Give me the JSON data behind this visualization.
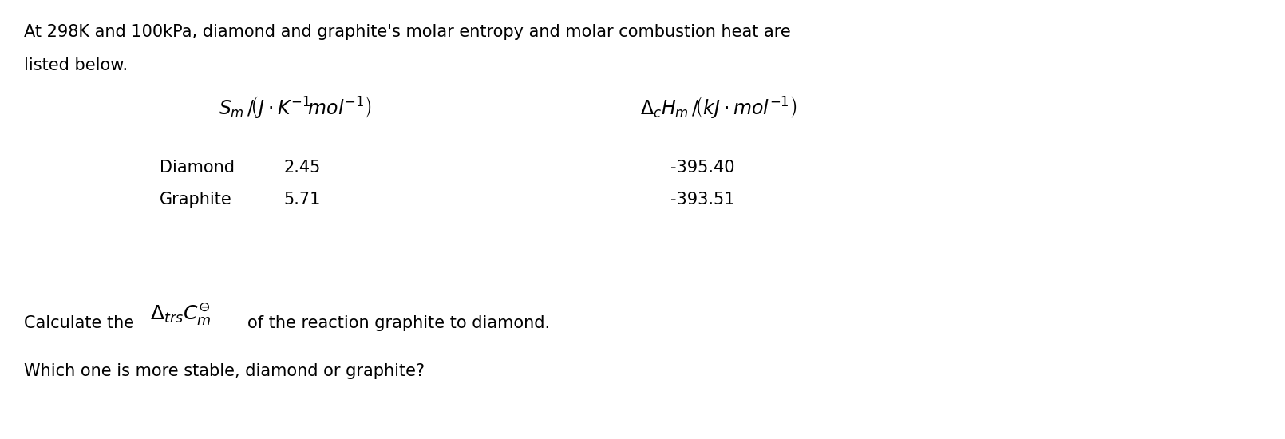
{
  "bg_color": "#ffffff",
  "text_color": "#000000",
  "figsize": [
    16.1,
    5.5
  ],
  "dpi": 100,
  "line1": "At 298K and 100kPa, diamond and graphite's molar entropy and molar combustion heat are",
  "line2": "listed below.",
  "row1_label": "Diamond",
  "row1_col1": "2.45",
  "row1_col2": "-395.40",
  "row2_label": "Graphite",
  "row2_col1": "5.71",
  "row2_col2": "-393.51",
  "calc_line_pre": "Calculate the",
  "calc_line_post": "of the reaction graphite to diamond.",
  "stable_line": "Which one is more stable, diamond or graphite?",
  "fs_body": 15,
  "fs_math": 17,
  "fs_table": 15
}
